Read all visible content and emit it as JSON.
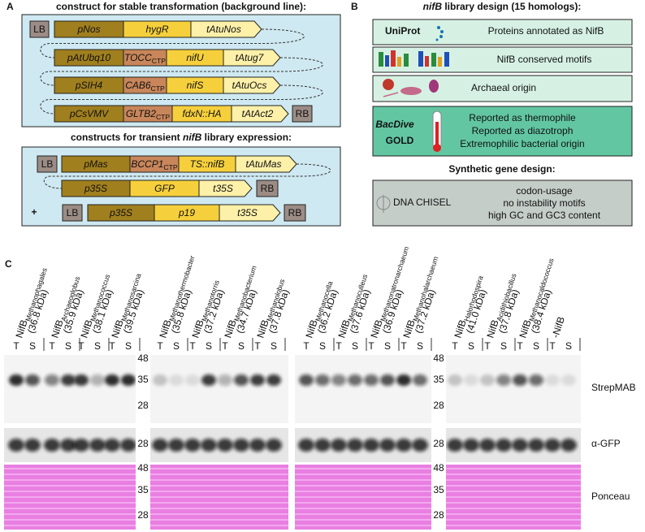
{
  "panel_a": {
    "label": "A",
    "stable_title": "construct for stable transformation (background line):",
    "stable_rows": [
      [
        "LB",
        "pNos",
        "hygR",
        "tAtuNos"
      ],
      [
        "pAtUbq10",
        {
          "text": "TOCC",
          "sub": "CTP"
        },
        "nifU",
        "tAtug7"
      ],
      [
        "pSIH4",
        {
          "text": "CAB6",
          "sub": "CTP"
        },
        "nifS",
        "tAtuOcs"
      ],
      [
        "pCsVMV",
        {
          "text": "GLTB2",
          "sub": "CTP"
        },
        "fdxN::HA",
        "tAtAct2",
        "RB"
      ]
    ],
    "transient_title": {
      "before": "constructs for transient ",
      "italic": "nifB",
      "after": " library expression:"
    },
    "transient_rows": [
      [
        "LB",
        "pMas",
        {
          "text": "BCCP1",
          "sub": "CTP"
        },
        "TS::nifB",
        "tAtuMas"
      ],
      [
        "p35S",
        "GFP",
        "t35S",
        "RB"
      ],
      [
        "+",
        "LB",
        "p35S",
        "p19",
        "t35S",
        "RB"
      ]
    ]
  },
  "panel_b": {
    "label": "B",
    "title": {
      "italic": "nifB",
      "after": " library design (15 homologs):"
    },
    "sources": [
      {
        "logo": "UniProt",
        "lines": [
          "Proteins annotated as NifB"
        ]
      },
      {
        "lines": [
          "NifB conserved motifs"
        ]
      },
      {
        "lines": [
          "Archaeal origin"
        ]
      },
      {
        "logos": [
          "BacDive",
          "GOLD"
        ],
        "lines": [
          "Reported as thermophile",
          "Reported as diazotroph",
          "Extremophilic bacterial origin"
        ]
      }
    ],
    "synthetic_title": "Synthetic gene design:",
    "tool": "DNA CHISEL",
    "criteria": [
      "codon-usage",
      "no instability motifs",
      "high GC and GC3 content"
    ]
  },
  "panel_c": {
    "label": "C",
    "lane_labels": [
      "T",
      "S"
    ],
    "left_constructs": [
      {
        "name": "NifB",
        "sub": "Methanophagales",
        "mass": "(36.8 kDa)"
      },
      {
        "name": "NifB",
        "sub": "Archaeoglobus",
        "mass": "(35.9 kDa)"
      },
      {
        "name": "NifB",
        "sub": "Methanococcus",
        "mass": "(38.1 kDa)"
      },
      {
        "name": "NifB",
        "sub": "Methanosarcina",
        "mass": "(39.5 kDa)"
      },
      {
        "name": "NifB",
        "sub": "Methanothermobacter",
        "mass": "(35.8 kDa)"
      },
      {
        "name": "NifB",
        "sub": "Methanotorris",
        "mass": "(37.2 kDa)"
      },
      {
        "name": "NifB",
        "sub": "Methanobacterium",
        "mass": "(34.7 kDa)"
      },
      {
        "name": "NifB",
        "sub": "Methanolobus",
        "mass": "(37.8 kDa)"
      }
    ],
    "right_constructs": [
      {
        "name": "NifB",
        "sub": "Methanocella",
        "mass": "(36.2 kDa)"
      },
      {
        "name": "NifB",
        "sub": "Methanoculleus",
        "mass": "(37.6 kDa)"
      },
      {
        "name": "NifB",
        "sub": "Methanonatronarchaeum",
        "mass": "(36.9 kDa)"
      },
      {
        "name": "NifB",
        "sub": "Methanohalarchaeum",
        "mass": "(37.2 kDa)"
      },
      {
        "name": "NifB",
        "sub": "Halorhodospira",
        "mass": "(41.0 kDa)"
      },
      {
        "name": "NifB",
        "sub": "Acidithiobacillus",
        "mass": "(37.8 kDa)"
      },
      {
        "name": "NifB",
        "sub": "Methanocaldococcus",
        "mass": "(38.4 kDa)"
      },
      {
        "name": "-NifB"
      }
    ],
    "markers_strep": [
      48,
      35,
      28
    ],
    "markers_gfp": [
      28
    ],
    "markers_ponceau": [
      48,
      35,
      28
    ],
    "blots": [
      "StrepMAB",
      "α-GFP",
      "Ponceau"
    ]
  }
}
